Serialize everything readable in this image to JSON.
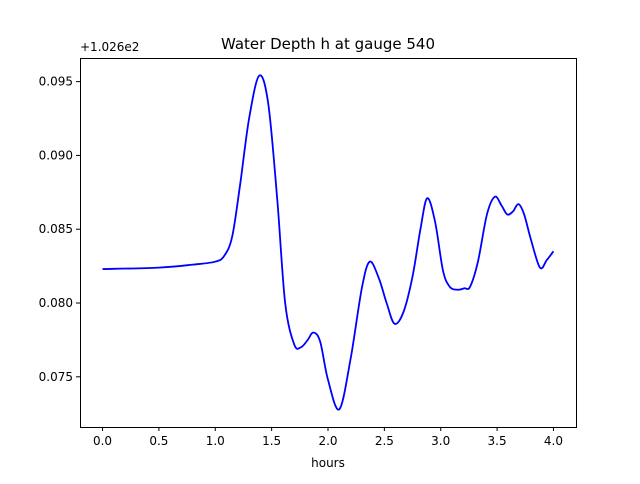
{
  "chart_data": {
    "type": "line",
    "title": "Water Depth h at gauge 540",
    "xlabel": "hours",
    "ylabel": "",
    "offset_label": "+1.026e2",
    "xlim": [
      -0.2,
      4.2
    ],
    "ylim": [
      0.0716,
      0.0966
    ],
    "xticks": [
      0.0,
      0.5,
      1.0,
      1.5,
      2.0,
      2.5,
      3.0,
      3.5,
      4.0
    ],
    "xtick_labels": [
      "0.0",
      "0.5",
      "1.0",
      "1.5",
      "2.0",
      "2.5",
      "3.0",
      "3.5",
      "4.0"
    ],
    "yticks": [
      0.075,
      0.08,
      0.085,
      0.09,
      0.095
    ],
    "ytick_labels": [
      "0.075",
      "0.080",
      "0.085",
      "0.090",
      "0.095"
    ],
    "grid": false,
    "series": [
      {
        "name": "h",
        "color": "#0000ff",
        "x": [
          0.0,
          0.5,
          0.8,
          1.0,
          1.08,
          1.15,
          1.22,
          1.3,
          1.39,
          1.47,
          1.55,
          1.62,
          1.7,
          1.76,
          1.82,
          1.87,
          1.93,
          2.0,
          2.1,
          2.2,
          2.3,
          2.37,
          2.45,
          2.52,
          2.59,
          2.67,
          2.75,
          2.82,
          2.88,
          2.95,
          3.02,
          3.08,
          3.15,
          3.21,
          3.26,
          3.33,
          3.41,
          3.48,
          3.54,
          3.59,
          3.64,
          3.69,
          3.74,
          3.8,
          3.88,
          3.94,
          4.0
        ],
        "y": [
          0.0823,
          0.0824,
          0.0826,
          0.0828,
          0.0832,
          0.0845,
          0.088,
          0.0925,
          0.0954,
          0.0935,
          0.087,
          0.08,
          0.0772,
          0.077,
          0.0775,
          0.078,
          0.0774,
          0.0748,
          0.0728,
          0.0762,
          0.081,
          0.0828,
          0.0817,
          0.08,
          0.0786,
          0.0794,
          0.0818,
          0.085,
          0.0871,
          0.0855,
          0.0822,
          0.0811,
          0.0809,
          0.081,
          0.0811,
          0.0828,
          0.086,
          0.0872,
          0.0866,
          0.086,
          0.0862,
          0.0867,
          0.086,
          0.0843,
          0.0824,
          0.0829,
          0.0835
        ]
      }
    ]
  }
}
